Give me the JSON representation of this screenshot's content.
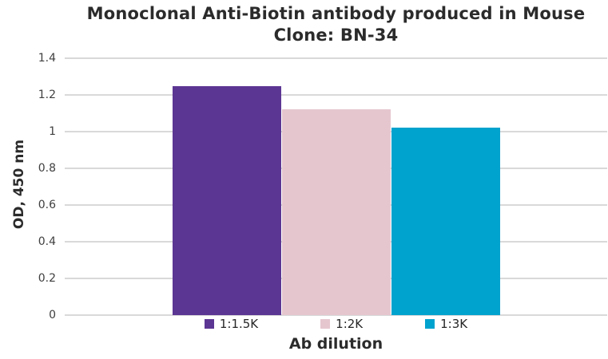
{
  "chart_data": {
    "type": "bar",
    "title": "Monoclonal Anti-Biotin antibody produced in Mouse Clone: BN-34",
    "title_lines": [
      "Monoclonal Anti-Biotin antibody produced in Mouse",
      "Clone: BN-34"
    ],
    "categories": [
      "1:1.5K",
      "1:2K",
      "1:3K"
    ],
    "values": [
      1.25,
      1.12,
      1.02
    ],
    "bar_colors": [
      "#5c3693",
      "#e5c6cf",
      "#00a2ce"
    ],
    "xlabel": "Ab dilution",
    "ylabel": "OD, 450 nm",
    "ylim": [
      0,
      1.4
    ],
    "yticks": [
      0,
      0.2,
      0.4,
      0.6,
      0.8,
      1,
      1.2,
      1.4
    ],
    "ytick_labels": [
      "0",
      "0.2",
      "0.4",
      "0.6",
      "0.8",
      "1",
      "1.2",
      "1.4"
    ],
    "grid": "horizontal",
    "legend_position": "bottom",
    "legend": [
      {
        "label": "1:1.5K",
        "color": "#5c3693"
      },
      {
        "label": "1:2K",
        "color": "#e5c6cf"
      },
      {
        "label": "1:3K",
        "color": "#00a2ce"
      }
    ]
  },
  "colors": {
    "background": "#ffffff",
    "gridline": "#d9d9d9",
    "title_text": "#2b2b2b",
    "axis_text": "#3f3f3f",
    "legend_text": "#262626"
  }
}
